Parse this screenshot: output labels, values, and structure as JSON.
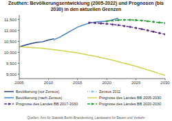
{
  "chart_data": {
    "type": "line",
    "title": "Zeuthen: Bevölkerungsentwicklung (2005-2022) und Prognosen (bis 2030) in den aktuellen Grenzen",
    "x": [
      2005,
      2006,
      2007,
      2008,
      2009,
      2010,
      2011,
      2012,
      2013,
      2014,
      2015,
      2016,
      2017,
      2018,
      2019,
      2020,
      2021,
      2022,
      2023,
      2024,
      2025,
      2026,
      2027,
      2028,
      2029,
      2030
    ],
    "xlim": [
      2005,
      2030
    ],
    "xticks": [
      2005,
      2010,
      2015,
      2020,
      2025,
      2030
    ],
    "ylim": [
      8800,
      11700
    ],
    "yticks": [
      {
        "value": 9000,
        "label": "9,000"
      },
      {
        "value": 9500,
        "label": "9,500"
      },
      {
        "value": 10000,
        "label": "10,000"
      },
      {
        "value": 10500,
        "label": "10,500"
      },
      {
        "value": 11000,
        "label": "11,000"
      },
      {
        "value": 11500,
        "label": "11,500"
      }
    ],
    "grid": false,
    "legend": "bottom",
    "series": [
      {
        "name": "Bevölkerung (vor Zensus)",
        "color": "#23418f",
        "line_style": "solid",
        "marker": "none",
        "values": [
          10250,
          10330,
          10400,
          10450,
          10480,
          10560,
          10620,
          null,
          null,
          null,
          null,
          null,
          null,
          null,
          null,
          null,
          null,
          null,
          null,
          null,
          null,
          null,
          null,
          null,
          null,
          null
        ]
      },
      {
        "name": "Zensus 2011",
        "color": "#7fb2e0",
        "line_style": "dotted",
        "marker": "circle",
        "values": [
          null,
          null,
          null,
          null,
          null,
          null,
          10580,
          null,
          null,
          null,
          null,
          null,
          null,
          null,
          null,
          null,
          null,
          null,
          null,
          null,
          null,
          null,
          null,
          null,
          null,
          null
        ]
      },
      {
        "name": "Bevölkerung (nach Zensus)",
        "color": "#3f86cc",
        "line_style": "solid",
        "marker": "none",
        "values": [
          null,
          null,
          null,
          null,
          null,
          null,
          10580,
          10700,
          10850,
          11000,
          11150,
          11250,
          11330,
          11380,
          11400,
          11420,
          11480,
          11560,
          null,
          null,
          null,
          null,
          null,
          null,
          null,
          null
        ]
      },
      {
        "name": "Prognose des Landes BB 2005-2030",
        "color": "#d2d24a",
        "line_style": "solid",
        "marker": "none",
        "values": [
          10250,
          10240,
          10220,
          10200,
          10180,
          10150,
          10120,
          10090,
          10050,
          10010,
          9970,
          9920,
          9870,
          9820,
          9760,
          9700,
          9640,
          9570,
          9500,
          9430,
          9360,
          9280,
          9200,
          9120,
          9030,
          8950
        ]
      },
      {
        "name": "Prognose des Landes BB 2017-2030",
        "color": "#5b2d8a",
        "line_style": "dashed",
        "marker": "circle",
        "values": [
          null,
          null,
          null,
          null,
          null,
          null,
          null,
          null,
          null,
          null,
          null,
          null,
          11350,
          11340,
          11320,
          11300,
          11270,
          11240,
          11200,
          11160,
          11110,
          11060,
          11000,
          10940,
          10880,
          10820
        ]
      },
      {
        "name": "Prognose des Landes BB 2020-2030",
        "color": "#2e9e3a",
        "line_style": "dashed",
        "marker": "circle",
        "values": [
          null,
          null,
          null,
          null,
          null,
          null,
          null,
          null,
          null,
          null,
          null,
          null,
          null,
          null,
          null,
          11420,
          11450,
          11470,
          11480,
          11480,
          11470,
          11450,
          11420,
          11390,
          11360,
          11330
        ]
      }
    ],
    "annotations": [
      "Quellen: Amt für Statistik Berlin-Brandenburg, Landesamt für Bauen und Verkehr"
    ]
  }
}
